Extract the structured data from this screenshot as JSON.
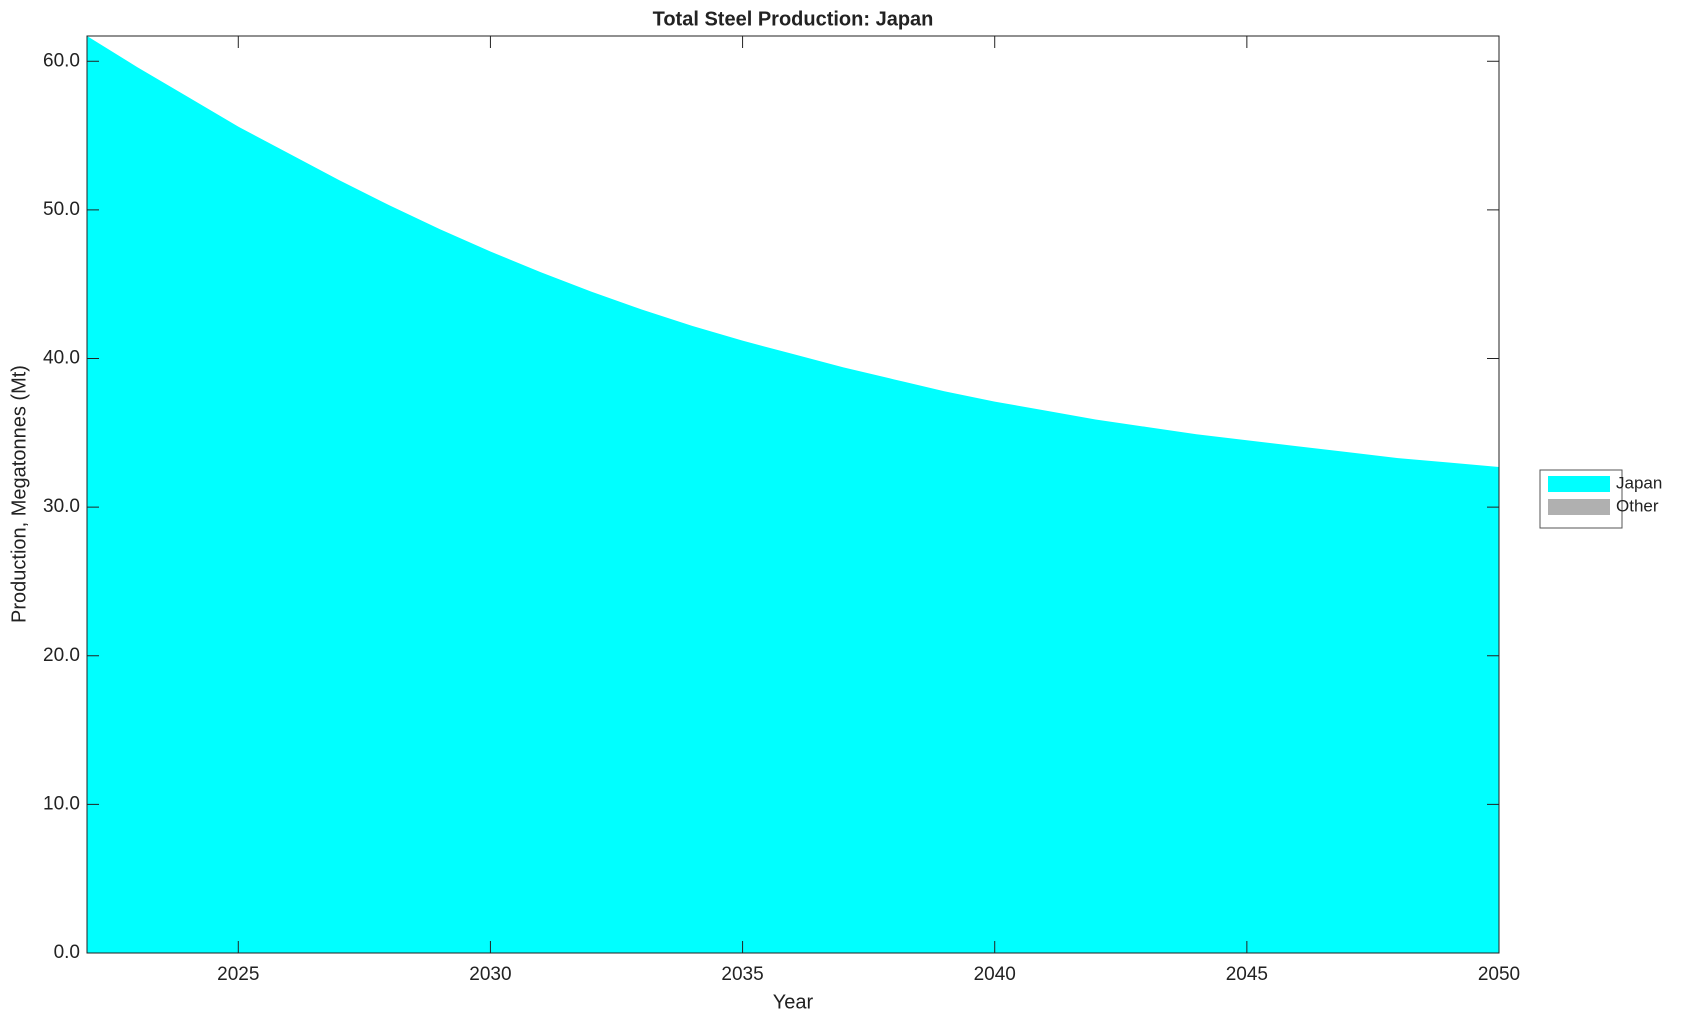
{
  "chart_data": {
    "type": "stacked-area",
    "title": "Total Steel Production: Japan",
    "x_label": "Year",
    "y_label": "Production, Megatonnes (Mt)",
    "x": [
      2022,
      2023,
      2024,
      2025,
      2026,
      2027,
      2028,
      2029,
      2030,
      2031,
      2032,
      2033,
      2034,
      2035,
      2036,
      2037,
      2038,
      2039,
      2040,
      2041,
      2042,
      2043,
      2044,
      2045,
      2046,
      2047,
      2048,
      2049,
      2050
    ],
    "series": [
      {
        "name": "Japan",
        "color": "#00ffff",
        "values": [
          61.7,
          59.6,
          57.6,
          55.6,
          53.8,
          52.0,
          50.3,
          48.7,
          47.2,
          45.8,
          44.5,
          43.3,
          42.2,
          41.2,
          40.3,
          39.4,
          38.6,
          37.8,
          37.1,
          36.5,
          35.9,
          35.4,
          34.9,
          34.5,
          34.1,
          33.7,
          33.3,
          33.0,
          32.7
        ]
      },
      {
        "name": "Other",
        "color": "#b0b0b0",
        "values": [
          0,
          0,
          0,
          0,
          0,
          0,
          0,
          0,
          0,
          0,
          0,
          0,
          0,
          0,
          0,
          0,
          0,
          0,
          0,
          0,
          0,
          0,
          0,
          0,
          0,
          0,
          0,
          0,
          0
        ]
      }
    ],
    "xlim": [
      2022,
      2050
    ],
    "xticks": [
      2025,
      2030,
      2035,
      2040,
      2045,
      2050
    ],
    "ylim": [
      0,
      61.7
    ],
    "yticks": [
      {
        "value": 0,
        "label": "0.0"
      },
      {
        "value": 10,
        "label": "10.0"
      },
      {
        "value": 20,
        "label": "20.0"
      },
      {
        "value": 30,
        "label": "30.0"
      },
      {
        "value": 40,
        "label": "40.0"
      },
      {
        "value": 50,
        "label": "50.0"
      },
      {
        "value": 60,
        "label": "60.0"
      }
    ],
    "legend": "east-outside",
    "grid": false
  }
}
